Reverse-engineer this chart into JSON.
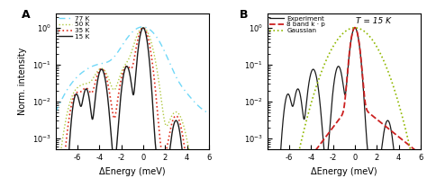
{
  "xlim": [
    -8,
    6
  ],
  "xlabel": "ΔEnergy (meV)",
  "ylabel": "Norm. intensity",
  "panel_A_label": "A",
  "panel_B_label": "B",
  "panel_B_annotation": "T = 15 K",
  "legend_A": [
    "77 K",
    "50 K",
    "35 K",
    "15 K"
  ],
  "legend_B": [
    "Experiment",
    "8 band k · p",
    "Gaussian"
  ],
  "colors_A": [
    "#70d8f8",
    "#b0c840",
    "#e03020",
    "#1a1a1a"
  ],
  "colors_B_exp": "#1a1a1a",
  "colors_B_kp": "#cc2020",
  "colors_B_gauss": "#90b800",
  "lw_77": 1.0,
  "lw_50": 1.0,
  "lw_35": 1.2,
  "lw_15": 1.0,
  "lw_kp": 1.3,
  "lw_gauss": 1.2,
  "lw_exp": 0.9
}
